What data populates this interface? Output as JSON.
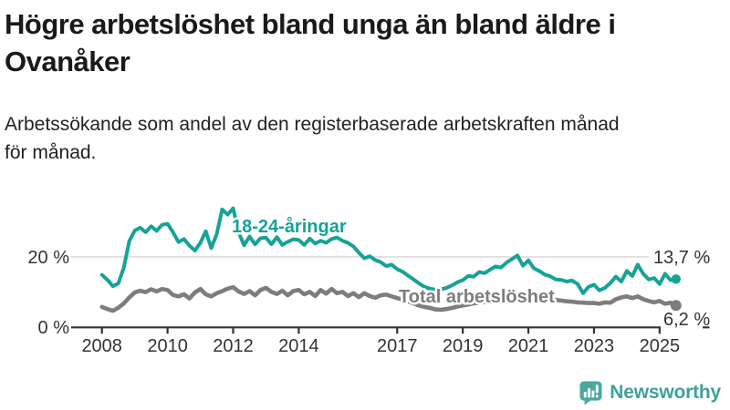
{
  "header": {
    "title_lines": [
      "Högre arbetslöshet bland unga än bland äldre i",
      "Ovanåker"
    ],
    "subtitle_lines": [
      "Arbetssökande som andel av den registerbaserade arbetskraften månad",
      "för månad."
    ]
  },
  "chart_data": {
    "type": "line",
    "title": "Högre arbetslöshet bland unga än bland äldre i Ovanåker",
    "subtitle": "Arbetssökande som andel av den registerbaserade arbetskraften månad för månad.",
    "unit": "%",
    "x_start_year": 2008.0,
    "points_per_year": 6,
    "xlim": [
      2008.0,
      2025.67
    ],
    "ylim": [
      0,
      36
    ],
    "grid": "horizontal gridline at 20% only",
    "legend_position": "inline-labels-on-lines",
    "x_ticks": [
      2008,
      2010,
      2012,
      2014,
      2017,
      2019,
      2021,
      2023,
      2025
    ],
    "y_ticks": [
      {
        "value": 0,
        "label": "0 %"
      },
      {
        "value": 20,
        "label": "20 %"
      }
    ],
    "series": [
      {
        "name": "18-24-åringar",
        "color": "#16a396",
        "end_label": "13,7 %",
        "last_value": 13.7,
        "values": [
          14.9,
          13.5,
          11.7,
          12.5,
          17.0,
          24.5,
          27.5,
          28.3,
          27.0,
          28.7,
          27.4,
          29.1,
          29.4,
          27.0,
          24.2,
          25.1,
          23.2,
          21.8,
          24.0,
          27.3,
          22.5,
          26.5,
          33.5,
          32.0,
          33.8,
          27.0,
          23.3,
          25.8,
          23.6,
          25.3,
          25.5,
          23.6,
          25.6,
          23.4,
          24.3,
          25.0,
          24.8,
          23.4,
          25.2,
          23.8,
          24.6,
          24.0,
          25.1,
          25.5,
          24.6,
          24.0,
          23.0,
          21.2,
          19.6,
          20.2,
          19.1,
          18.5,
          17.4,
          17.8,
          16.5,
          15.8,
          14.7,
          13.6,
          12.5,
          11.5,
          11.0,
          10.7,
          10.8,
          11.2,
          11.9,
          12.8,
          13.4,
          14.6,
          14.4,
          15.7,
          15.4,
          16.4,
          17.3,
          17.0,
          18.4,
          19.4,
          20.4,
          17.5,
          19.0,
          16.8,
          16.0,
          15.0,
          14.5,
          13.6,
          13.5,
          13.0,
          13.3,
          12.3,
          9.7,
          11.5,
          12.1,
          10.5,
          11.2,
          12.6,
          14.4,
          13.0,
          16.0,
          14.6,
          17.8,
          15.2,
          13.6,
          14.0,
          12.3,
          15.2,
          13.4,
          13.7
        ]
      },
      {
        "name": "Total arbetslöshet",
        "color": "#7d7d7d",
        "end_label": "6,2 %",
        "last_value": 6.2,
        "values": [
          5.8,
          5.2,
          4.7,
          5.6,
          6.8,
          8.5,
          9.9,
          10.4,
          10.0,
          10.8,
          10.2,
          10.9,
          10.6,
          9.2,
          8.8,
          9.4,
          8.2,
          9.9,
          10.9,
          9.4,
          8.8,
          9.7,
          10.3,
          11.0,
          11.4,
          10.2,
          9.5,
          10.3,
          9.1,
          10.6,
          11.2,
          10.1,
          9.5,
          10.4,
          9.1,
          10.3,
          10.6,
          9.4,
          10.1,
          8.9,
          10.6,
          9.6,
          10.9,
          9.7,
          10.1,
          8.9,
          9.7,
          8.6,
          9.7,
          8.9,
          8.4,
          9.1,
          9.3,
          8.8,
          8.3,
          7.9,
          7.4,
          6.8,
          6.2,
          5.8,
          5.5,
          5.1,
          5.0,
          5.2,
          5.5,
          5.9,
          6.2,
          6.5,
          6.8,
          7.0,
          7.2,
          7.4,
          7.7,
          8.1,
          8.7,
          9.1,
          9.2,
          9.0,
          8.8,
          8.6,
          8.4,
          8.2,
          8.0,
          7.8,
          7.6,
          7.4,
          7.3,
          7.1,
          7.0,
          6.9,
          6.9,
          6.7,
          7.1,
          7.0,
          8.0,
          8.5,
          8.8,
          8.3,
          8.8,
          8.0,
          7.5,
          7.1,
          7.5,
          6.7,
          7.0,
          6.2
        ]
      }
    ],
    "axis_color": "#333333",
    "gridline_color": "#dcdcdc"
  },
  "footer": {
    "brand": "Newsworthy",
    "brand_text_color": "#3fa19b",
    "logo_icon": "bar-chart-speech-bubble-icon",
    "logo_icon_color": "#4aa8a2"
  }
}
